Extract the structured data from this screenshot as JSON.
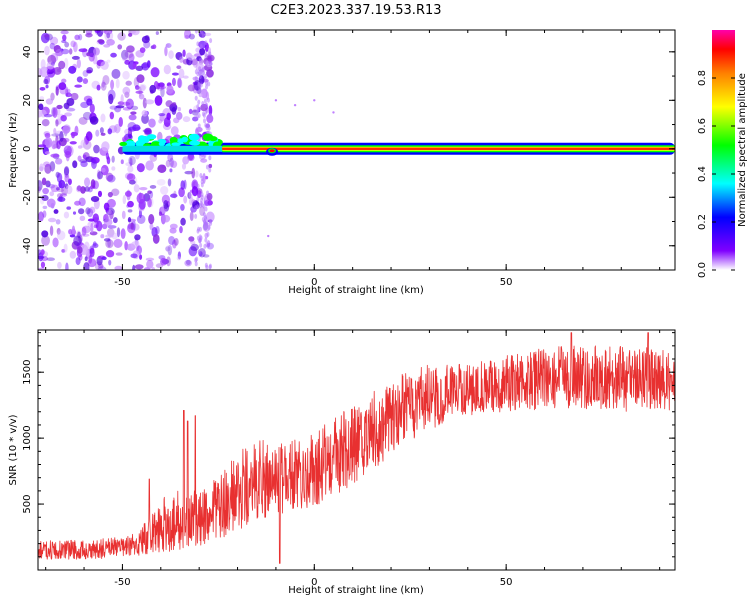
{
  "title": "C2E3.2023.337.19.53.R13",
  "colors": {
    "snr_line": "#e83030",
    "spectrogram_scatter": "#8a2be2",
    "colormap": [
      "#ff00aa",
      "#ff0000",
      "#ff8000",
      "#ffff00",
      "#00ff00",
      "#00ffff",
      "#0000ff",
      "#8000ff",
      "#ffffff"
    ]
  },
  "chart_data": [
    {
      "type": "heatmap",
      "title": "C2E3.2023.337.19.53.R13",
      "xlabel": "Height of straight line (km)",
      "ylabel": "Frequency (Hz)",
      "xlim": [
        -72,
        94
      ],
      "ylim": [
        -50,
        49
      ],
      "xticks": [
        -50,
        0,
        50
      ],
      "yticks": [
        -40,
        -20,
        0,
        20,
        40
      ],
      "colorbar": {
        "label": "Normalized spectral amplitude",
        "range": [
          0,
          1
        ],
        "ticks": [
          "0.0",
          "0.2",
          "0.4",
          "0.6",
          "0.8"
        ]
      },
      "features": {
        "trace_frequency_hz": 0,
        "noise_region_x": [
          -72,
          -27
        ],
        "strong_trace_x": [
          -24,
          94
        ]
      }
    },
    {
      "type": "line",
      "xlabel": "Height of straight line (km)",
      "ylabel": "SNR (10 * v/v)",
      "xlim": [
        -72,
        94
      ],
      "ylim": [
        0,
        1820
      ],
      "xticks": [
        -50,
        0,
        50
      ],
      "yticks": [
        500,
        1000,
        1500
      ],
      "envelope": {
        "x": [
          -72,
          -60,
          -50,
          -45,
          -40,
          -35,
          -30,
          -25,
          -20,
          -15,
          -10,
          -5,
          0,
          5,
          10,
          15,
          20,
          25,
          30,
          35,
          40,
          45,
          50,
          55,
          60,
          65,
          70,
          75,
          80,
          85,
          90,
          94
        ],
        "y_low": [
          80,
          80,
          90,
          110,
          120,
          140,
          180,
          230,
          300,
          380,
          420,
          450,
          480,
          560,
          650,
          760,
          860,
          970,
          1060,
          1130,
          1170,
          1190,
          1200,
          1210,
          1220,
          1230,
          1220,
          1210,
          1200,
          1200,
          1200,
          1200
        ],
        "y_high": [
          220,
          230,
          250,
          320,
          550,
          650,
          600,
          720,
          900,
          980,
          1000,
          1000,
          1050,
          1150,
          1250,
          1350,
          1450,
          1520,
          1560,
          1560,
          1560,
          1600,
          1640,
          1660,
          1690,
          1700,
          1700,
          1700,
          1700,
          1690,
          1680,
          1660
        ]
      },
      "spikes": [
        {
          "x": -34,
          "y": 1210
        },
        {
          "x": -33,
          "y": 1130
        },
        {
          "x": -31,
          "y": 1170
        },
        {
          "x": -43,
          "y": 690
        },
        {
          "x": -8,
          "y": 640
        },
        {
          "x": -9,
          "y": 50
        },
        {
          "x": 67,
          "y": 1800
        },
        {
          "x": 87,
          "y": 1800
        }
      ]
    }
  ]
}
